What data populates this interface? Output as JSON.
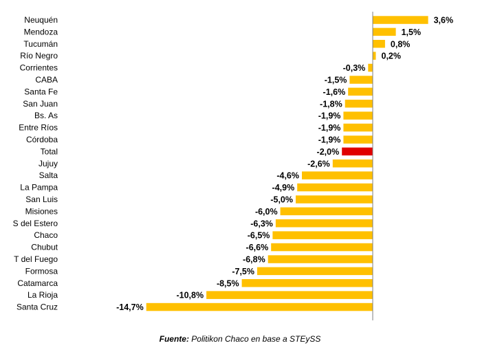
{
  "chart_data": {
    "type": "bar",
    "orientation": "horizontal",
    "categories": [
      "Neuquén",
      "Mendoza",
      "Tucumán",
      "Río Negro",
      "Corrientes",
      "CABA",
      "Santa Fe",
      "San Juan",
      "Bs. As",
      "Entre Ríos",
      "Córdoba",
      "Total",
      "Jujuy",
      "Salta",
      "La Pampa",
      "San Luis",
      "Misiones",
      "S del Estero",
      "Chaco",
      "Chubut",
      "T del Fuego",
      "Formosa",
      "Catamarca",
      "La Rioja",
      "Santa Cruz"
    ],
    "values": [
      3.6,
      1.5,
      0.8,
      0.2,
      -0.3,
      -1.5,
      -1.6,
      -1.8,
      -1.9,
      -1.9,
      -1.9,
      -2.0,
      -2.6,
      -4.6,
      -4.9,
      -5.0,
      -6.0,
      -6.3,
      -6.5,
      -6.6,
      -6.8,
      -7.5,
      -8.5,
      -10.8,
      -14.7
    ],
    "value_labels": [
      "3,6%",
      "1,5%",
      "0,8%",
      "0,2%",
      "-0,3%",
      "-1,5%",
      "-1,6%",
      "-1,8%",
      "-1,9%",
      "-1,9%",
      "-1,9%",
      "-2,0%",
      "-2,6%",
      "-4,6%",
      "-4,9%",
      "-5,0%",
      "-6,0%",
      "-6,3%",
      "-6,5%",
      "-6,6%",
      "-6,8%",
      "-7,5%",
      "-8,5%",
      "-10,8%",
      "-14,7%"
    ],
    "highlight_category": "Total",
    "xlim": [
      -14.7,
      3.6
    ],
    "grid": false,
    "legend": "none",
    "colors": {
      "bar": "#FFC000",
      "highlight": "#E00000",
      "axis": "#7f7f7f"
    }
  },
  "source": {
    "label": "Fuente:",
    "text": " Politikon Chaco en base a STEySS"
  }
}
